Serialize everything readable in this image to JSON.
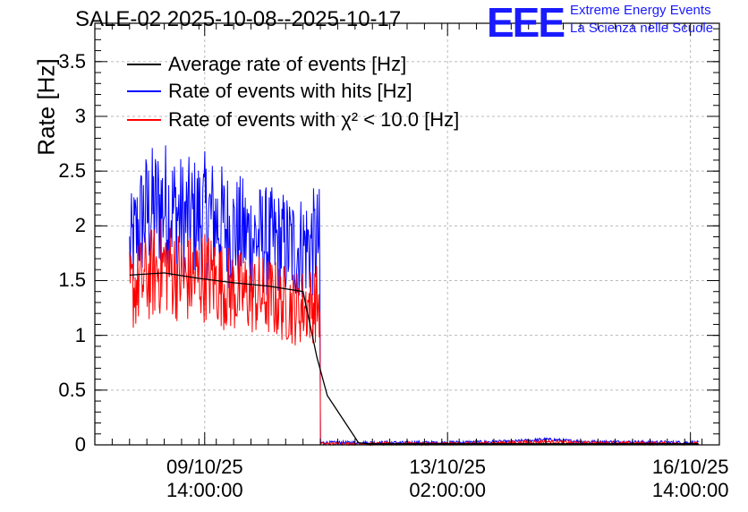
{
  "chart_data": {
    "type": "line",
    "title": "SALE-02 2025-10-08--2025-10-17",
    "ylabel": "Rate [Hz]",
    "xlabel": "",
    "ylim": [
      0,
      3.85
    ],
    "xlim_days": [
      0,
      9
    ],
    "y_ticks": [
      "0",
      "0.5",
      "1",
      "1.5",
      "2",
      "2.5",
      "3",
      "3.5"
    ],
    "y_tick_values": [
      0,
      0.5,
      1,
      1.5,
      2,
      2.5,
      3,
      3.5
    ],
    "x_ticks": [
      {
        "date": "09/10/25",
        "time": "14:00:00",
        "day": 1.583
      },
      {
        "date": "13/10/25",
        "time": "02:00:00",
        "day": 5.083
      },
      {
        "date": "16/10/25",
        "time": "14:00:00",
        "day": 8.583
      }
    ],
    "grid": true,
    "legend_position": "top-left",
    "series": [
      {
        "name": "Average rate of events [Hz]",
        "color": "#000000",
        "x": [
          0.5,
          1.0,
          1.5,
          2.0,
          2.5,
          3.0,
          3.2,
          3.35,
          3.8,
          3.95,
          8.7
        ],
        "y": [
          1.55,
          1.57,
          1.52,
          1.48,
          1.45,
          1.4,
          0.8,
          0.45,
          0.02,
          0.01,
          0.01
        ]
      },
      {
        "name": "Rate of events with hits [Hz]",
        "color": "#0000ff",
        "x": [
          0.5,
          0.7,
          1.0,
          1.3,
          1.6,
          2.0,
          2.5,
          2.9,
          3.24,
          3.25,
          4.0,
          5.0,
          6.0,
          6.5,
          7.0,
          8.7
        ],
        "y": [
          1.75,
          2.1,
          2.2,
          2.05,
          2.1,
          1.95,
          1.85,
          1.8,
          1.85,
          0.02,
          0.02,
          0.02,
          0.03,
          0.05,
          0.03,
          0.02
        ]
      },
      {
        "name": "Rate of events with χ² < 10.0 [Hz]",
        "color": "#ff0000",
        "x": [
          0.5,
          0.7,
          1.0,
          1.3,
          1.6,
          2.0,
          2.5,
          2.9,
          3.24,
          3.25,
          4.0,
          5.0,
          6.0,
          6.5,
          7.0,
          8.7
        ],
        "y": [
          1.4,
          1.5,
          1.65,
          1.5,
          1.55,
          1.4,
          1.35,
          1.25,
          1.3,
          0.01,
          0.01,
          0.01,
          0.02,
          0.03,
          0.02,
          0.01
        ]
      }
    ]
  },
  "logo": {
    "mark": "EEE",
    "line1": "Extreme Energy Events",
    "line2": "La Scienza nelle Scuole",
    "color": "#1a1aff"
  }
}
